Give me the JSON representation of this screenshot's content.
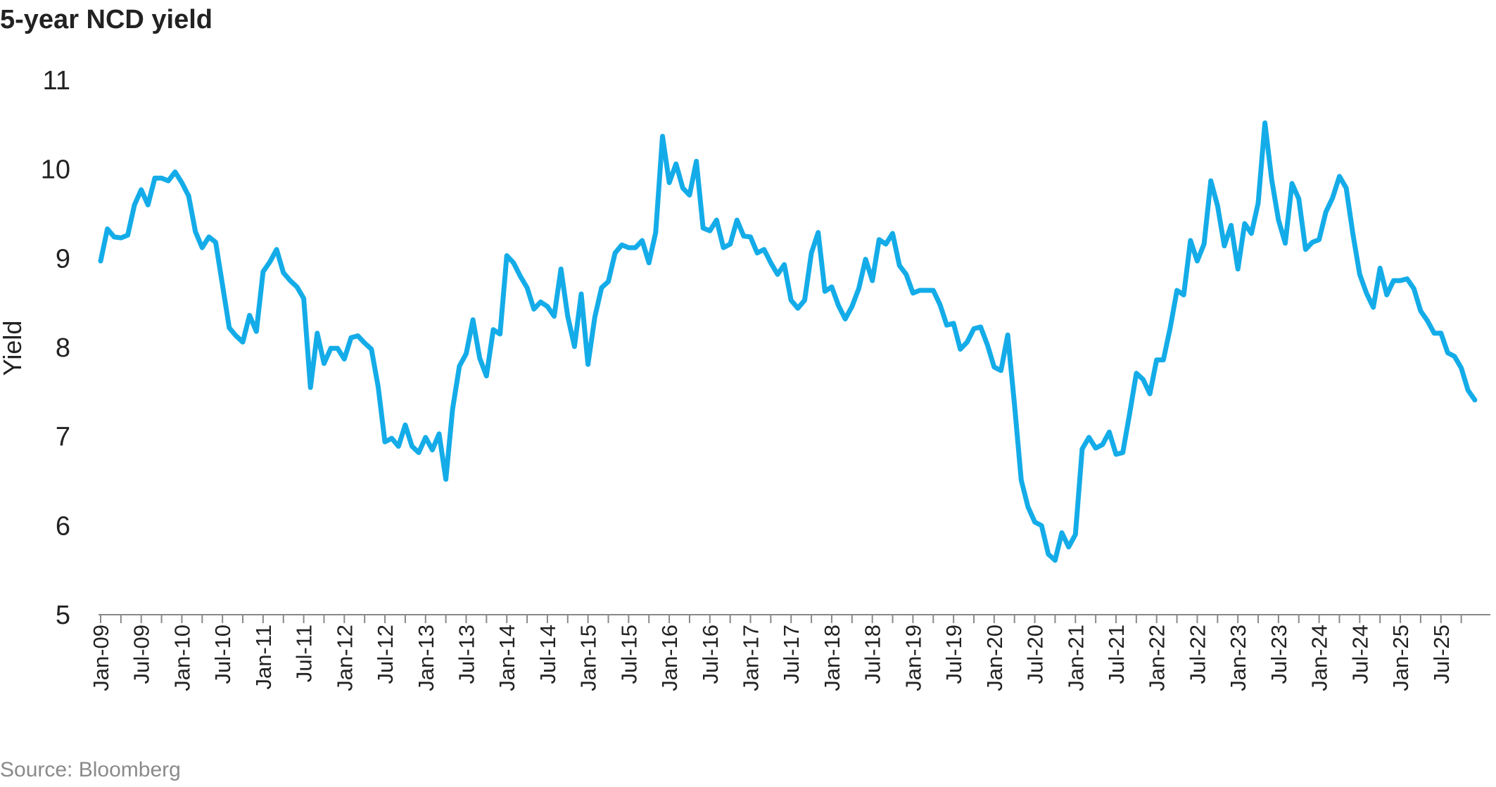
{
  "chart_data": {
    "type": "line",
    "title": "5-year NCD yield",
    "source": "Source: Bloomberg",
    "ylabel": "Yield",
    "xlabel": "",
    "ylim": [
      5,
      11
    ],
    "yticks": [
      5,
      6,
      7,
      8,
      9,
      10,
      11
    ],
    "grid": false,
    "legend": "none",
    "color": "#14ace8",
    "xtick_labels": [
      "Jan-09",
      "Jul-09",
      "Jan-10",
      "Jul-10",
      "Jan-11",
      "Jul-11",
      "Jan-12",
      "Jul-12",
      "Jan-13",
      "Jul-13",
      "Jan-14",
      "Jul-14",
      "Jan-15",
      "Jul-15",
      "Jan-16",
      "Jul-16",
      "Jan-17",
      "Jul-17",
      "Jan-18",
      "Jul-18",
      "Jan-19",
      "Jul-19",
      "Jan-20",
      "Jul-20",
      "Jan-21",
      "Jul-21",
      "Jan-22",
      "Jul-22",
      "Jan-23",
      "Jul-23",
      "Jan-24",
      "Jul-24",
      "Jan-25",
      "Jul-25"
    ],
    "series": [
      {
        "start": "Jan-09",
        "frequency": "monthly",
        "values": [
          8.97,
          9.33,
          9.24,
          9.23,
          9.26,
          9.6,
          9.77,
          9.6,
          9.9,
          9.9,
          9.87,
          9.97,
          9.85,
          9.7,
          9.3,
          9.12,
          9.24,
          9.18,
          8.7,
          8.22,
          8.13,
          8.06,
          8.36,
          8.18,
          8.85,
          8.96,
          9.1,
          8.84,
          8.75,
          8.68,
          8.55,
          7.55,
          8.16,
          7.82,
          7.99,
          7.99,
          7.87,
          8.11,
          8.13,
          8.05,
          7.98,
          7.56,
          6.94,
          6.98,
          6.89,
          7.13,
          6.89,
          6.82,
          6.99,
          6.85,
          7.03,
          6.52,
          7.31,
          7.79,
          7.93,
          8.31,
          7.88,
          7.68,
          8.2,
          8.15,
          9.03,
          8.95,
          8.8,
          8.67,
          8.43,
          8.51,
          8.46,
          8.35,
          8.88,
          8.35,
          8.01,
          8.6,
          7.81,
          8.34,
          8.67,
          8.74,
          9.06,
          9.15,
          9.12,
          9.12,
          9.2,
          8.95,
          9.29,
          10.37,
          9.85,
          10.06,
          9.79,
          9.71,
          10.09,
          9.34,
          9.31,
          9.43,
          9.12,
          9.16,
          9.43,
          9.25,
          9.24,
          9.06,
          9.1,
          8.95,
          8.82,
          8.93,
          8.53,
          8.44,
          8.53,
          9.06,
          9.29,
          8.63,
          8.68,
          8.47,
          8.32,
          8.46,
          8.66,
          8.99,
          8.75,
          9.21,
          9.16,
          9.28,
          8.92,
          8.82,
          8.61,
          8.64,
          8.64,
          8.64,
          8.48,
          8.25,
          8.27,
          7.98,
          8.06,
          8.21,
          8.23,
          8.03,
          7.78,
          7.74,
          8.14,
          7.36,
          6.51,
          6.21,
          6.04,
          6.0,
          5.68,
          5.61,
          5.92,
          5.76,
          5.9,
          6.86,
          6.99,
          6.87,
          6.91,
          7.05,
          6.8,
          6.82,
          7.25,
          7.71,
          7.64,
          7.48,
          7.86,
          7.86,
          8.22,
          8.64,
          8.59,
          9.2,
          8.97,
          9.16,
          9.87,
          9.59,
          9.14,
          9.37,
          8.88,
          9.39,
          9.28,
          9.62,
          10.52,
          9.88,
          9.43,
          9.17,
          9.84,
          9.67,
          9.1,
          9.18,
          9.21,
          9.52,
          9.68,
          9.92,
          9.79,
          9.27,
          8.82,
          8.61,
          8.45,
          8.89,
          8.59,
          8.75,
          8.75,
          8.77,
          8.66,
          8.41,
          8.3,
          8.16,
          8.16,
          7.94,
          7.9,
          7.77,
          7.52,
          7.41
        ]
      }
    ]
  }
}
